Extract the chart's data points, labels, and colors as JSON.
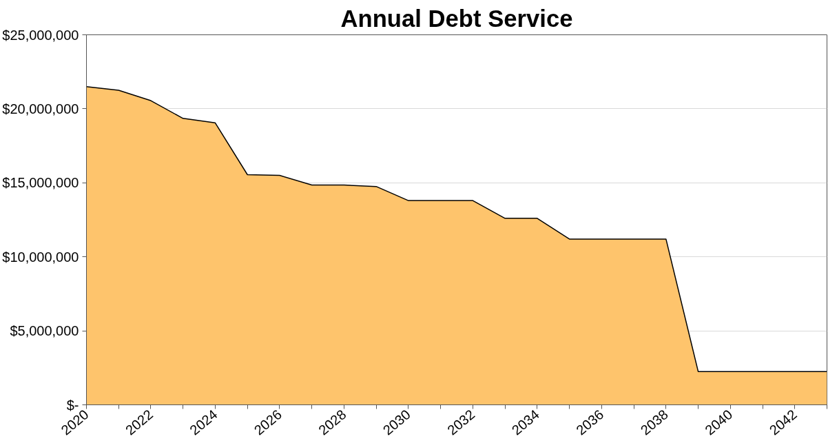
{
  "chart_data": {
    "type": "area",
    "title": "Annual Debt Service",
    "x": [
      2020,
      2021,
      2022,
      2023,
      2024,
      2025,
      2026,
      2027,
      2028,
      2029,
      2030,
      2031,
      2032,
      2033,
      2034,
      2035,
      2036,
      2037,
      2038,
      2039,
      2040,
      2041,
      2042,
      2043
    ],
    "series": [
      {
        "color": "#fec46c",
        "values": [
          21500000,
          21250000,
          20550000,
          19350000,
          19050000,
          15550000,
          15500000,
          14850000,
          14850000,
          14750000,
          13800000,
          13800000,
          13800000,
          12600000,
          12600000,
          11200000,
          11200000,
          11200000,
          11200000,
          2250000,
          2250000,
          2250000,
          2250000,
          2250000
        ]
      }
    ],
    "xlim": [
      2020,
      2043
    ],
    "xticks": [
      2020,
      {
        "value": 2021,
        "label": null
      },
      2022,
      {
        "value": 2023,
        "label": null
      },
      2024,
      {
        "value": 2025,
        "label": null
      },
      2026,
      {
        "value": 2027,
        "label": null
      },
      2028,
      {
        "value": 2029,
        "label": null
      },
      2030,
      {
        "value": 2031,
        "label": null
      },
      2032,
      {
        "value": 2033,
        "label": null
      },
      2034,
      {
        "value": 2035,
        "label": null
      },
      2036,
      {
        "value": 2037,
        "label": null
      },
      2038,
      {
        "value": 2039,
        "label": null
      },
      2040,
      {
        "value": 2041,
        "label": null
      },
      2042,
      {
        "value": 2043,
        "label": null
      }
    ],
    "ylim": [
      0,
      25000000
    ],
    "yticks": [
      {
        "value": 0,
        "label": "$-"
      },
      {
        "value": 5000000,
        "label": "$5,000,000"
      },
      {
        "value": 10000000,
        "label": "$10,000,000"
      },
      {
        "value": 15000000,
        "label": "$15,000,000"
      },
      {
        "value": 20000000,
        "label": "$20,000,000"
      },
      {
        "value": 25000000,
        "label": "$25,000,000"
      }
    ],
    "grid": "y"
  }
}
